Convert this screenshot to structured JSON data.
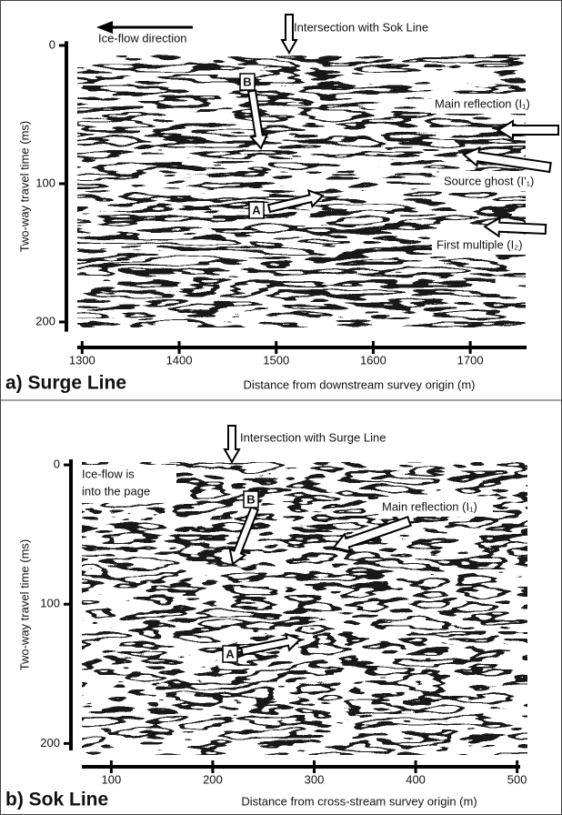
{
  "chart_data": [
    {
      "type": "seismic",
      "title": "a) Surge Line",
      "x_label": "Distance from downstream survey origin (m)",
      "y_label": "Two-way travel time (ms)",
      "xlim": [
        1295,
        1758
      ],
      "xticks": [
        1300,
        1400,
        1500,
        1600,
        1700
      ],
      "ylim": [
        -3,
        207
      ],
      "yticks": [
        0,
        100,
        200
      ],
      "y_inverted": true,
      "grid": false,
      "annotations": [
        "Ice-flow direction",
        "Intersection with Sok Line",
        "B",
        "A",
        "Main reflection (I₁)",
        "Source ghost (I'₁)",
        "First multiple (I₂)"
      ]
    },
    {
      "type": "seismic",
      "title": "b) Sok Line",
      "x_label": "Distance from cross-stream survey origin (m)",
      "y_label": "Two-way travel time (ms)",
      "xlim": [
        71,
        503
      ],
      "xticks": [
        100,
        200,
        300,
        400,
        500
      ],
      "ylim": [
        -4,
        205
      ],
      "yticks": [
        0,
        100,
        200
      ],
      "y_inverted": true,
      "grid": false,
      "annotations": [
        "Intersection with Surge Line",
        "Ice-flow is",
        "into the page",
        "B",
        "A",
        "Main reflection (I₁)"
      ]
    }
  ]
}
